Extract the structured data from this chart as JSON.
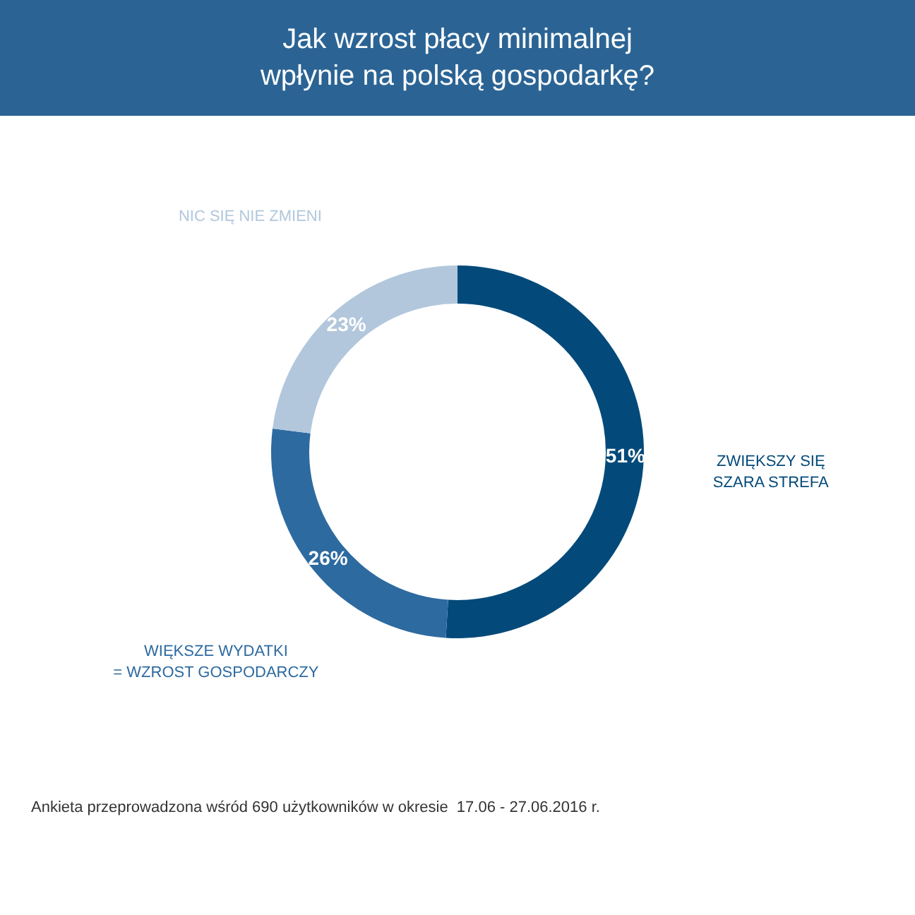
{
  "chart_data": {
    "type": "donut",
    "title": "Jak wzrost płacy minimalnej\nwpłynie na polską gospodarkę?",
    "categories": [
      "ZWIĘKSZY SIĘ\nSZARA STREFA",
      "WIĘKSZE WYDATKI\n= WZROST GOSPODARCZY",
      "NIC SIĘ NIE ZMIENI"
    ],
    "values": [
      51,
      26,
      23
    ],
    "colors": [
      "#034a7a",
      "#2d6aa0",
      "#b2c7dc"
    ],
    "value_labels": [
      "51%",
      "26%",
      "23%"
    ],
    "annotations": [
      "Ankieta przeprowadzona wśród 690 użytkowników w okresie  17.06 - 27.06.2016 r."
    ]
  }
}
